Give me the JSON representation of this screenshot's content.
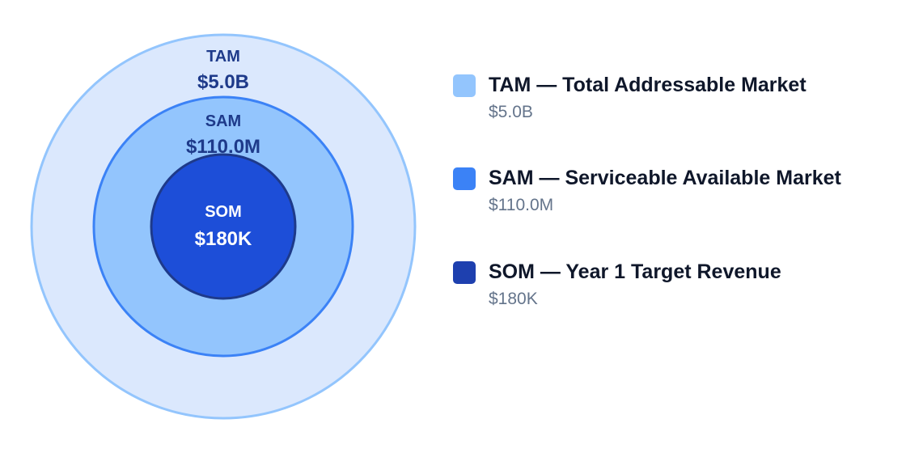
{
  "colors": {
    "tam_fill": "#dbe8fd",
    "tam_stroke": "#93c5fd",
    "sam_fill": "#93c5fd",
    "sam_stroke": "#3b82f6",
    "som_fill": "#1d4ed8",
    "som_stroke": "#1e3a8a",
    "outer_label": "#1e3a8a",
    "inner_label": "#ffffff",
    "legend_tam": "#93c5fd",
    "legend_sam": "#3b82f6",
    "legend_som": "#1e40af"
  },
  "circles": {
    "tam": {
      "name": "TAM",
      "value": "$5.0B"
    },
    "sam": {
      "name": "SAM",
      "value": "$110.0M"
    },
    "som": {
      "name": "SOM",
      "value": "$180K"
    }
  },
  "legend": {
    "items": [
      {
        "title": "TAM — Total Addressable Market",
        "value": "$5.0B",
        "color_key": "legend_tam"
      },
      {
        "title": "SAM — Serviceable Available Market",
        "value": "$110.0M",
        "color_key": "legend_sam"
      },
      {
        "title": "SOM — Year 1 Target Revenue",
        "value": "$180K",
        "color_key": "legend_som"
      }
    ]
  }
}
